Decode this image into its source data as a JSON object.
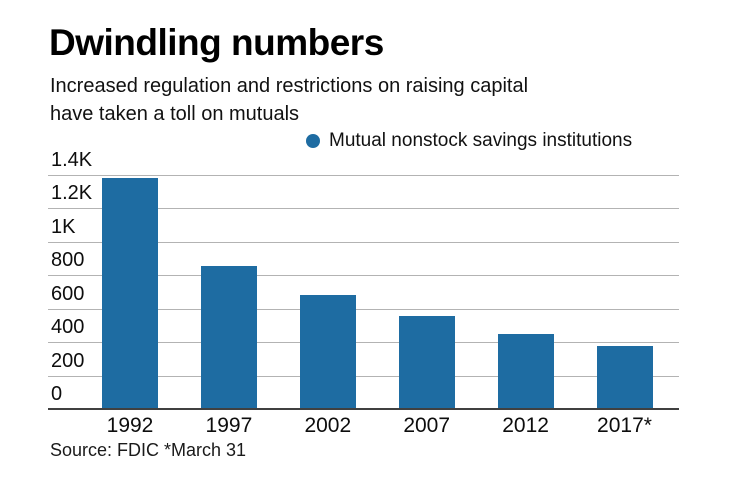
{
  "header": {
    "title": "Dwindling numbers",
    "subtitle_lines": [
      "Increased regulation and restrictions on raising capital",
      "have taken a toll on mutuals"
    ]
  },
  "legend": {
    "label": "Mutual nonstock savings institutions",
    "marker_icon": "circle-icon",
    "marker_color": "#1e6ca2"
  },
  "chart_data": {
    "type": "bar",
    "title": "Dwindling numbers",
    "subtitle": "Increased regulation and restrictions on raising capital have taken a toll on mutuals",
    "categories": [
      "1992",
      "1997",
      "2002",
      "2007",
      "2012",
      "2017*"
    ],
    "series": [
      {
        "name": "Mutual nonstock savings institutions",
        "values": [
          1380,
          855,
          680,
          555,
          450,
          375
        ]
      }
    ],
    "xlabel": "",
    "ylabel": "",
    "ylim": [
      0,
      1400
    ],
    "y_ticks": [
      {
        "value": 1400,
        "label": "1.4K"
      },
      {
        "value": 1200,
        "label": "1.2K"
      },
      {
        "value": 1000,
        "label": "1K"
      },
      {
        "value": 800,
        "label": "800"
      },
      {
        "value": 600,
        "label": "600"
      },
      {
        "value": 400,
        "label": "400"
      },
      {
        "value": 200,
        "label": "200"
      },
      {
        "value": 0,
        "label": "0"
      }
    ],
    "bar_color": "#1e6ca2",
    "grid": true,
    "gridline_color": "#b3b3b3",
    "axis_color": "#404040",
    "legend_position": "top-right"
  },
  "footer": {
    "source": "Source: FDIC *March 31"
  }
}
